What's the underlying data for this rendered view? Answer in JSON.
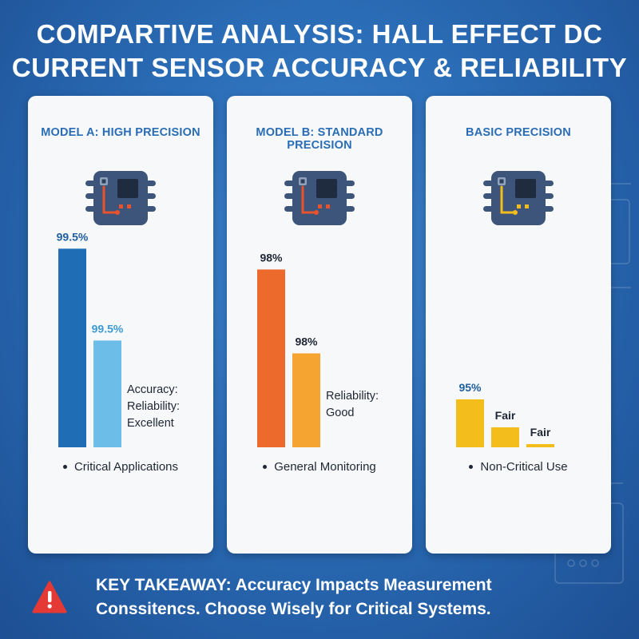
{
  "title": {
    "line1": "COMPARTIVE ANALYSIS: HALL EFFECT DC",
    "line2": "CURRENT SENSOR ACCURACY & RELIABILITY"
  },
  "colors": {
    "blue_dark": "#1f6db5",
    "blue_light": "#6dbde9",
    "orange_dark": "#ec6a2c",
    "orange_light": "#f5a431",
    "yellow": "#f3bd1c",
    "chip_body": "#3d557a",
    "chip_square": "#1f2b3e"
  },
  "chart_data": [
    {
      "type": "bar",
      "heading": "MODEL A: HIGH PRECISION",
      "chip_icon": "chip-icon",
      "trace_color": "#e8522c",
      "bars": [
        {
          "label": "99.5%",
          "value": 99.5,
          "color": "#1f6db5"
        },
        {
          "label": "99.5%",
          "value": 99.5,
          "color": "#6dbde9"
        }
      ],
      "side_text": [
        "Accuracy:",
        "Reliability:",
        "Excellent"
      ],
      "bullet": "Critical Applications"
    },
    {
      "type": "bar",
      "heading": "MODEL B: STANDARD PRECISION",
      "chip_icon": "chip-icon",
      "trace_color": "#e8522c",
      "bars": [
        {
          "label": "98%",
          "value": 98,
          "color": "#ec6a2c"
        },
        {
          "label": "98%",
          "value": 98,
          "color": "#f5a431"
        }
      ],
      "side_text": [
        "Reliability:",
        "Good"
      ],
      "bullet": "General Monitoring"
    },
    {
      "type": "bar",
      "heading": "BASIC PRECISION",
      "chip_icon": "chip-icon",
      "trace_color": "#f3bd1c",
      "bars": [
        {
          "label": "95%",
          "value": 95,
          "color": "#f3bd1c"
        },
        {
          "label": "Fair",
          "value": null,
          "color": "#f3bd1c"
        },
        {
          "label": "Fair",
          "value": null,
          "color": "#f3bd1c"
        }
      ],
      "side_text": [],
      "bullet": "Non-Critical Use"
    }
  ],
  "takeaway": {
    "icon": "warning-icon",
    "line1": "KEY TAKEAWAY: Accuracy Impacts Measurement",
    "line2": "Conssitencs. Choose Wisely for Critical Systems."
  }
}
